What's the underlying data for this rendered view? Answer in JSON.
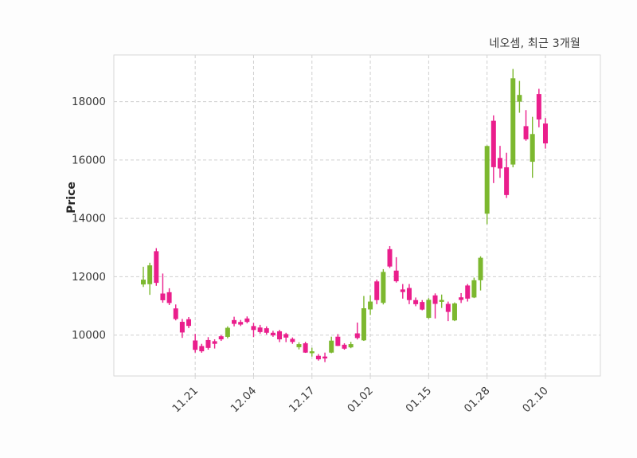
{
  "title": "네오셈, 최근 3개월",
  "colors": {
    "up": "#7cb82f",
    "down": "#ea1e8c",
    "grid": "#cfcfcf",
    "spine": "#d8d8d8",
    "tick_label": "#3a3a3a",
    "title_text": "#3a3a3a",
    "figure_bg": "#fdfdfd",
    "plot_bg": "#ffffff"
  },
  "chart_data": {
    "type": "candlestick",
    "title": "네오셈, 최근 3개월",
    "xlabel": "",
    "ylabel": "Price",
    "ylim": [
      8600,
      19600
    ],
    "y_ticks": [
      10000,
      12000,
      14000,
      16000,
      18000
    ],
    "x_tick_labels": [
      "11.21",
      "12.04",
      "12.17",
      "01.02",
      "01.15",
      "01.28",
      "02.10"
    ],
    "x_tick_indices": [
      8,
      17,
      26,
      35,
      44,
      53,
      62
    ],
    "grid": "dashed",
    "legend": "none",
    "up_means": "close >= open (green)",
    "down_means": "close < open (magenta)",
    "candles_ohlc": [
      [
        11735,
        12342,
        11650,
        11900
      ],
      [
        11745,
        12480,
        11380,
        12390
      ],
      [
        12875,
        12980,
        11690,
        11790
      ],
      [
        11425,
        12110,
        11110,
        11195
      ],
      [
        11470,
        11605,
        11030,
        11100
      ],
      [
        10915,
        11050,
        10505,
        10550
      ],
      [
        10455,
        10555,
        9905,
        10090
      ],
      [
        10545,
        10620,
        10240,
        10315
      ],
      [
        9815,
        10040,
        9400,
        9495
      ],
      [
        9625,
        9700,
        9395,
        9445
      ],
      [
        9830,
        9930,
        9500,
        9560
      ],
      [
        9790,
        9855,
        9540,
        9700
      ],
      [
        9960,
        10000,
        9800,
        9855
      ],
      [
        9940,
        10300,
        9890,
        10250
      ],
      [
        10515,
        10630,
        10300,
        10385
      ],
      [
        10450,
        10520,
        10310,
        10360
      ],
      [
        10570,
        10640,
        10405,
        10450
      ],
      [
        10310,
        10420,
        9930,
        10175
      ],
      [
        10260,
        10350,
        10050,
        10105
      ],
      [
        10235,
        10300,
        10020,
        10080
      ],
      [
        10080,
        10150,
        9940,
        9990
      ],
      [
        10130,
        10180,
        9760,
        9855
      ],
      [
        10035,
        10080,
        9760,
        9915
      ],
      [
        9870,
        9920,
        9700,
        9765
      ],
      [
        9585,
        9755,
        9510,
        9690
      ],
      [
        9720,
        9770,
        9390,
        9400
      ],
      [
        9380,
        9565,
        9265,
        9445
      ],
      [
        9290,
        9350,
        9125,
        9170
      ],
      [
        9265,
        9400,
        9075,
        9200
      ],
      [
        9400,
        9945,
        9380,
        9810
      ],
      [
        9945,
        10035,
        9625,
        9630
      ],
      [
        9670,
        9720,
        9500,
        9535
      ],
      [
        9580,
        9770,
        9550,
        9690
      ],
      [
        10060,
        10430,
        9850,
        9900
      ],
      [
        9820,
        11340,
        9800,
        10920
      ],
      [
        10880,
        11360,
        10690,
        11150
      ],
      [
        11840,
        11900,
        11060,
        11200
      ],
      [
        11105,
        12260,
        11050,
        12165
      ],
      [
        12945,
        13050,
        12300,
        12350
      ],
      [
        12210,
        12670,
        11800,
        11845
      ],
      [
        11565,
        11750,
        11250,
        11475
      ],
      [
        11615,
        11750,
        11060,
        11200
      ],
      [
        11200,
        11290,
        10990,
        11060
      ],
      [
        11135,
        11200,
        10850,
        10875
      ],
      [
        10590,
        11270,
        10560,
        11210
      ],
      [
        11360,
        11430,
        10570,
        11070
      ],
      [
        11140,
        11390,
        10930,
        11205
      ],
      [
        11070,
        11150,
        10480,
        10795
      ],
      [
        10505,
        11120,
        10480,
        11085
      ],
      [
        11295,
        11440,
        11100,
        11205
      ],
      [
        11700,
        11750,
        11150,
        11250
      ],
      [
        11290,
        11970,
        11270,
        11880
      ],
      [
        11880,
        12700,
        11530,
        12650
      ],
      [
        14160,
        16500,
        13800,
        16480
      ],
      [
        17345,
        17530,
        15210,
        15755
      ],
      [
        16070,
        16485,
        15390,
        15710
      ],
      [
        15750,
        16250,
        14700,
        14800
      ],
      [
        15845,
        19120,
        15750,
        18800
      ],
      [
        18000,
        18710,
        17620,
        18230
      ],
      [
        17160,
        17710,
        16660,
        16710
      ],
      [
        15940,
        17480,
        15390,
        16890
      ],
      [
        18260,
        18440,
        17120,
        17390
      ],
      [
        17250,
        17440,
        16390,
        16570
      ]
    ]
  }
}
